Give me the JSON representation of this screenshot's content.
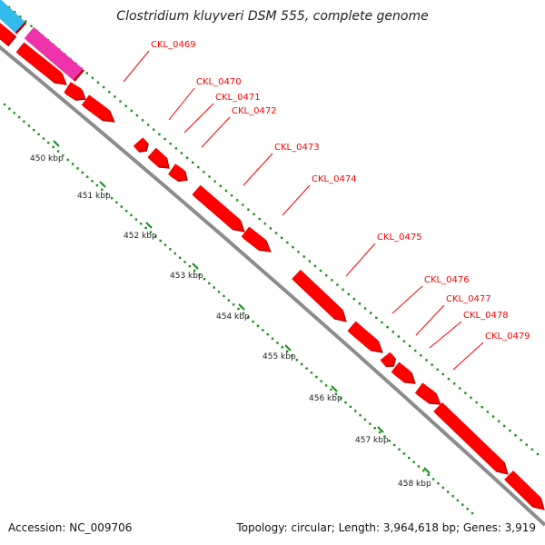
{
  "title": "Clostridium kluyveri DSM 555, complete genome",
  "footer": {
    "accession": "Accession: NC_009706",
    "summary": "Topology: circular; Length: 3,964,618 bp; Genes: 3,919"
  },
  "colors": {
    "gene": "#ff0000",
    "gene_dark": "#b80000",
    "backbone": "#8c8c8c",
    "tick": "#1a8c1a",
    "label": "#ff0000",
    "cyan_feature": "#33bbee",
    "pink_feature": "#ee33aa"
  },
  "ticks": [
    "450 kbp",
    "451 kbp",
    "452 kbp",
    "453 kbp",
    "454 kbp",
    "455 kbp",
    "456 kbp",
    "457 kbp",
    "458 kbp"
  ],
  "genes": [
    {
      "label": "CKL_0469"
    },
    {
      "label": "CKL_0470"
    },
    {
      "label": "CKL_0471"
    },
    {
      "label": "CKL_0472"
    },
    {
      "label": "CKL_0473"
    },
    {
      "label": "CKL_0474"
    },
    {
      "label": "CKL_0475"
    },
    {
      "label": "CKL_0476"
    },
    {
      "label": "CKL_0477"
    },
    {
      "label": "CKL_0478"
    },
    {
      "label": "CKL_0479"
    }
  ]
}
